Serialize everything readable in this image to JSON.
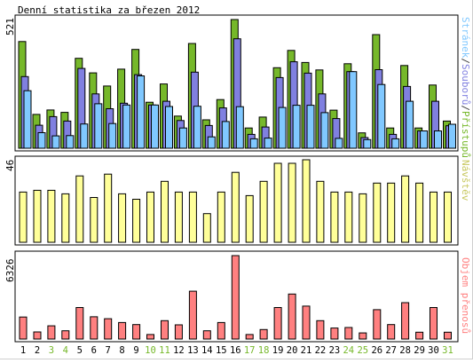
{
  "chart_data": [
    {
      "type": "bar",
      "title": "Denní statistika za březen 2012",
      "ymax_label": "521",
      "ylim": [
        0,
        521
      ],
      "categories": [
        "1",
        "2",
        "3",
        "4",
        "5",
        "6",
        "7",
        "8",
        "9",
        "10",
        "11",
        "12",
        "13",
        "14",
        "15",
        "16",
        "17",
        "18",
        "19",
        "20",
        "21",
        "22",
        "23",
        "24",
        "25",
        "26",
        "27",
        "28",
        "29",
        "30",
        "31"
      ],
      "weekend_days": [
        "3",
        "4",
        "10",
        "11",
        "17",
        "18",
        "24",
        "25",
        "31"
      ],
      "series": [
        {
          "name": "Přístupů",
          "color": "#76b82a",
          "values": [
            432,
            137,
            155,
            145,
            364,
            305,
            252,
            320,
            400,
            186,
            260,
            130,
            424,
            115,
            197,
            521,
            82,
            126,
            326,
            396,
            347,
            317,
            154,
            342,
            62,
            460,
            82,
            335,
            82,
            256,
            110
          ]
        },
        {
          "name": "Souborů",
          "color": "#8080e0",
          "values": [
            290,
            93,
            128,
            110,
            323,
            220,
            160,
            182,
            298,
            175,
            190,
            112,
            308,
            92,
            163,
            443,
            56,
            86,
            286,
            350,
            304,
            220,
            120,
            310,
            43,
            318,
            56,
            250,
            70,
            190,
            91
          ]
        },
        {
          "name": "Stránek",
          "color": "#80c8ff",
          "values": [
            233,
            63,
            50,
            51,
            98,
            180,
            100,
            175,
            293,
            175,
            169,
            82,
            170,
            46,
            108,
            168,
            38,
            41,
            165,
            174,
            174,
            144,
            40,
            310,
            35,
            258,
            38,
            190,
            70,
            70,
            97
          ]
        }
      ],
      "legend_labels": [
        "Stránek",
        "/",
        "Souborů",
        "/",
        "Přístupů"
      ],
      "legend_colors": [
        "#80c8ff",
        "#404040",
        "#8080e0",
        "#404040",
        "#76b82a"
      ]
    },
    {
      "type": "bar",
      "ymax_label": "46",
      "ylim": [
        0,
        46
      ],
      "series": [
        {
          "name": "Návštěv",
          "color": "#ffff99",
          "values": [
            28,
            29,
            29,
            27,
            37,
            25,
            38,
            27,
            24,
            28,
            34,
            28,
            28,
            16,
            28,
            39,
            26,
            34,
            44,
            44,
            46,
            34,
            28,
            28,
            27,
            33,
            33,
            37,
            33,
            28,
            28
          ]
        }
      ]
    },
    {
      "type": "bar",
      "ymax_label": "6326",
      "ylim": [
        0,
        6326
      ],
      "series": [
        {
          "name": "Objem přenosů",
          "color": "#ff8080",
          "values": [
            1670,
            538,
            1000,
            629,
            2392,
            1690,
            1538,
            1251,
            1094,
            342,
            1390,
            1075,
            3630,
            628,
            1251,
            6326,
            342,
            723,
            2392,
            3415,
            2500,
            1391,
            834,
            875,
            465,
            2230,
            1095,
            2762,
            520,
            2392,
            520
          ]
        }
      ]
    }
  ]
}
